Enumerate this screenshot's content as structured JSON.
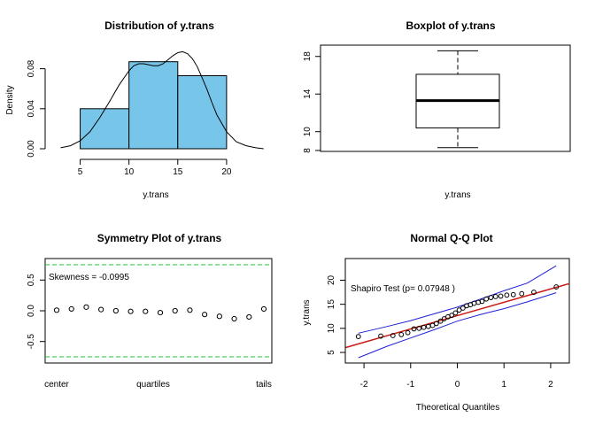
{
  "chart_data": [
    {
      "type": "bar",
      "title": "Distribution of y.trans",
      "xlabel": "y.trans",
      "ylabel": "Density",
      "bins": [
        [
          5,
          10
        ],
        [
          10,
          15
        ],
        [
          15,
          20
        ]
      ],
      "values": [
        0.04,
        0.087,
        0.073
      ],
      "xlim": [
        2.5,
        24
      ],
      "ylim": [
        0,
        0.1
      ],
      "xticks": [
        "5",
        "10",
        "15",
        "20"
      ],
      "yticks": [
        "0.00",
        "0.04",
        "0.08"
      ],
      "density_curve": {
        "x": [
          3,
          4,
          5,
          6,
          7,
          8,
          9,
          10,
          10.5,
          11,
          11.5,
          12,
          12.5,
          13,
          13.5,
          14,
          14.5,
          15,
          15.5,
          16,
          16.5,
          17,
          17.5,
          18,
          18.5,
          19,
          20,
          21,
          22,
          23,
          23.8
        ],
        "y": [
          0.001,
          0.003,
          0.008,
          0.017,
          0.031,
          0.047,
          0.064,
          0.078,
          0.083,
          0.085,
          0.085,
          0.084,
          0.083,
          0.083,
          0.085,
          0.089,
          0.093,
          0.096,
          0.097,
          0.095,
          0.09,
          0.082,
          0.071,
          0.059,
          0.046,
          0.034,
          0.017,
          0.007,
          0.003,
          0.001,
          0.0
        ]
      },
      "colors": {
        "bar_fill": "#77c5e9",
        "bar_stroke": "#000000",
        "curve": "#000000"
      }
    },
    {
      "type": "box",
      "title": "Boxplot of y.trans",
      "xlabel": "y.trans",
      "min": 8.3,
      "q1": 10.4,
      "median": 13.3,
      "q3": 16.1,
      "max": 18.6,
      "ylim": [
        7.9,
        19.2
      ],
      "yticks": [
        "8",
        "10",
        "14",
        "18"
      ]
    },
    {
      "type": "scatter",
      "title": "Symmetry Plot of y.trans",
      "annotation": "Skewness = -0.0995",
      "xtick_labels": [
        "center",
        "quartiles",
        "tails"
      ],
      "yticks": [
        "-0.5",
        "0.0",
        "0.5"
      ],
      "ylim": [
        -0.85,
        0.85
      ],
      "reference_lines": [
        0.75,
        -0.75
      ],
      "values": [
        0.01,
        0.03,
        0.06,
        0.02,
        0.0,
        -0.01,
        -0.01,
        -0.03,
        0.0,
        0.01,
        -0.06,
        -0.09,
        -0.13,
        -0.1,
        0.03
      ],
      "colors": {
        "reference": "#22c32b"
      }
    },
    {
      "type": "scatter",
      "title": "Normal Q-Q Plot",
      "xlabel": "Theoretical Quantiles",
      "ylabel": "y.trans",
      "annotation": "Shapiro Test (p= 0.07948 )",
      "xlim": [
        -2.4,
        2.4
      ],
      "ylim": [
        2.8,
        24.5
      ],
      "xticks": [
        "-2",
        "-1",
        "0",
        "1",
        "2"
      ],
      "yticks": [
        "5",
        "10",
        "15",
        "20"
      ],
      "points": {
        "x": [
          -2.12,
          -1.64,
          -1.38,
          -1.2,
          -1.06,
          -0.93,
          -0.82,
          -0.72,
          -0.62,
          -0.53,
          -0.45,
          -0.36,
          -0.28,
          -0.2,
          -0.12,
          -0.04,
          0.04,
          0.12,
          0.2,
          0.28,
          0.36,
          0.45,
          0.53,
          0.62,
          0.72,
          0.82,
          0.93,
          1.06,
          1.2,
          1.38,
          1.64,
          2.12
        ],
        "y": [
          8.3,
          8.4,
          8.5,
          8.7,
          9.1,
          9.9,
          10.0,
          10.2,
          10.4,
          10.6,
          11.0,
          11.5,
          12.0,
          12.4,
          12.7,
          13.2,
          13.8,
          14.2,
          14.7,
          14.9,
          15.2,
          15.4,
          15.6,
          16.1,
          16.4,
          16.6,
          16.7,
          16.9,
          17.0,
          17.2,
          17.5,
          18.6
        ]
      },
      "reference_line": {
        "x": [
          -2.4,
          2.4
        ],
        "y": [
          6.0,
          19.3
        ]
      },
      "envelope_upper": {
        "x": [
          -2.12,
          -1.5,
          -1.0,
          -0.5,
          0.0,
          0.5,
          1.0,
          1.5,
          2.12
        ],
        "y": [
          9.0,
          10.4,
          11.6,
          13.0,
          14.4,
          16.1,
          17.8,
          19.4,
          23.0
        ]
      },
      "envelope_lower": {
        "x": [
          -2.12,
          -1.5,
          -1.0,
          -0.5,
          0.0,
          0.5,
          1.0,
          1.5,
          2.12
        ],
        "y": [
          3.9,
          6.3,
          8.0,
          9.7,
          11.5,
          12.9,
          14.1,
          15.5,
          17.4
        ]
      },
      "colors": {
        "reference": "#c91a15",
        "envelope": "#1f1fd6"
      }
    }
  ]
}
